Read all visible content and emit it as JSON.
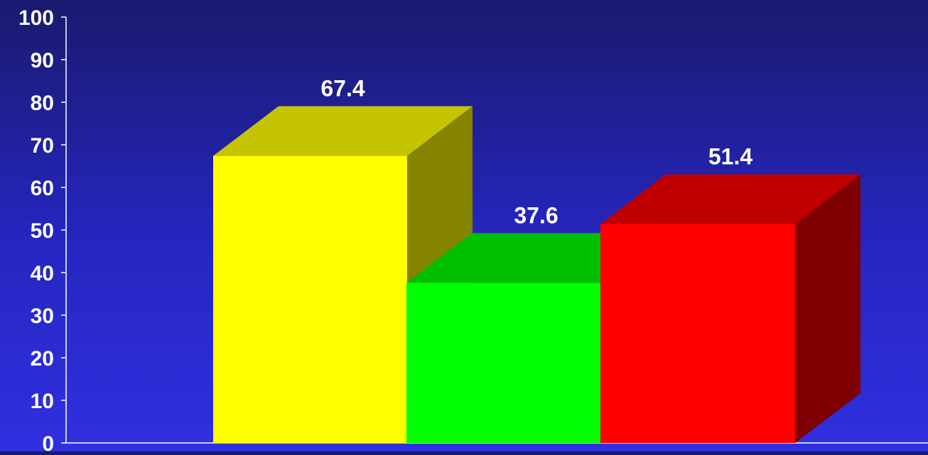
{
  "chart_data": {
    "type": "bar",
    "style": "3d",
    "values": [
      67.4,
      37.6,
      51.4
    ],
    "data_labels": [
      "67.4",
      "37.6",
      "51.4"
    ],
    "colors": [
      {
        "front": "#ffff00",
        "top": "#c4c400",
        "side": "#848400"
      },
      {
        "front": "#00ff00",
        "top": "#00be00",
        "side": "#007f00"
      },
      {
        "front": "#ff0000",
        "top": "#c00000",
        "side": "#7f0000"
      }
    ],
    "ylim": [
      0,
      100
    ],
    "y_ticks": [
      "0",
      "10",
      "20",
      "30",
      "40",
      "50",
      "60",
      "70",
      "80",
      "90",
      "100"
    ],
    "grid": false,
    "legend": false
  },
  "theme": {
    "background_top": "#1a1a70",
    "background_bottom": "#3030e0",
    "axis_color": "#ffffff",
    "text_color": "#ffffff"
  }
}
